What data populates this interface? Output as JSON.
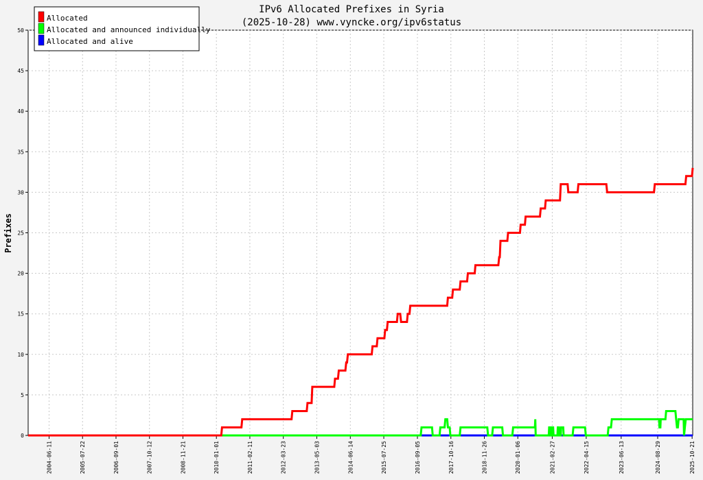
{
  "chart_data": {
    "type": "line",
    "title": "IPv6 Allocated Prefixes in Syria",
    "subtitle": "(2025-10-28) www.vyncke.org/ipv6status",
    "ylabel": "Prefixes",
    "xlabel": "",
    "ylim": [
      0,
      50
    ],
    "yticks": [
      0,
      5,
      10,
      15,
      20,
      25,
      30,
      35,
      40,
      45,
      50
    ],
    "xlim": [
      "2003-10-01",
      "2025-10-28"
    ],
    "xticks": [
      "2004-06-11",
      "2005-07-22",
      "2006-09-01",
      "2007-10-12",
      "2008-11-21",
      "2010-01-01",
      "2011-02-11",
      "2012-03-23",
      "2013-05-03",
      "2014-06-14",
      "2015-07-25",
      "2016-09-05",
      "2017-10-16",
      "2018-11-26",
      "2020-01-06",
      "2021-02-27",
      "2022-04-15",
      "2023-06-13",
      "2024-08-29",
      "2025-10-21"
    ],
    "grid": true,
    "legend_position": "top-left",
    "series": [
      {
        "name": "Allocated",
        "color": "#ff0000",
        "points": [
          [
            "2003-10-01",
            0
          ],
          [
            "2010-03-01",
            0
          ],
          [
            "2010-03-10",
            1
          ],
          [
            "2010-11-01",
            1
          ],
          [
            "2010-11-10",
            2
          ],
          [
            "2012-07-01",
            2
          ],
          [
            "2012-07-10",
            3
          ],
          [
            "2013-01-01",
            3
          ],
          [
            "2013-01-10",
            4
          ],
          [
            "2013-03-01",
            4
          ],
          [
            "2013-03-10",
            6
          ],
          [
            "2013-12-01",
            6
          ],
          [
            "2013-12-10",
            7
          ],
          [
            "2014-01-15",
            7
          ],
          [
            "2014-01-25",
            8
          ],
          [
            "2014-04-15",
            8
          ],
          [
            "2014-04-25",
            9
          ],
          [
            "2014-05-05",
            9
          ],
          [
            "2014-05-15",
            10
          ],
          [
            "2015-03-01",
            10
          ],
          [
            "2015-03-10",
            11
          ],
          [
            "2015-05-01",
            11
          ],
          [
            "2015-05-10",
            12
          ],
          [
            "2015-08-01",
            12
          ],
          [
            "2015-08-10",
            13
          ],
          [
            "2015-09-01",
            13
          ],
          [
            "2015-09-10",
            14
          ],
          [
            "2016-01-01",
            14
          ],
          [
            "2016-01-10",
            15
          ],
          [
            "2016-02-10",
            15
          ],
          [
            "2016-02-20",
            14
          ],
          [
            "2016-05-01",
            14
          ],
          [
            "2016-05-10",
            15
          ],
          [
            "2016-06-01",
            15
          ],
          [
            "2016-06-10",
            16
          ],
          [
            "2017-09-01",
            16
          ],
          [
            "2017-09-10",
            17
          ],
          [
            "2017-11-01",
            17
          ],
          [
            "2017-11-10",
            18
          ],
          [
            "2018-02-01",
            18
          ],
          [
            "2018-02-10",
            19
          ],
          [
            "2018-05-01",
            19
          ],
          [
            "2018-05-10",
            20
          ],
          [
            "2018-08-01",
            20
          ],
          [
            "2018-08-10",
            21
          ],
          [
            "2019-05-15",
            21
          ],
          [
            "2019-05-25",
            22
          ],
          [
            "2019-06-01",
            22
          ],
          [
            "2019-06-10",
            24
          ],
          [
            "2019-09-01",
            24
          ],
          [
            "2019-09-10",
            25
          ],
          [
            "2020-02-01",
            25
          ],
          [
            "2020-02-10",
            26
          ],
          [
            "2020-04-01",
            26
          ],
          [
            "2020-04-10",
            27
          ],
          [
            "2020-10-01",
            27
          ],
          [
            "2020-10-10",
            28
          ],
          [
            "2020-12-01",
            28
          ],
          [
            "2020-12-10",
            29
          ],
          [
            "2021-06-01",
            29
          ],
          [
            "2021-06-10",
            31
          ],
          [
            "2021-09-01",
            31
          ],
          [
            "2021-09-10",
            30
          ],
          [
            "2022-01-01",
            30
          ],
          [
            "2022-01-10",
            31
          ],
          [
            "2022-12-15",
            31
          ],
          [
            "2022-12-25",
            30
          ],
          [
            "2024-07-15",
            30
          ],
          [
            "2024-07-25",
            31
          ],
          [
            "2025-08-01",
            31
          ],
          [
            "2025-08-10",
            32
          ],
          [
            "2025-10-20",
            32
          ],
          [
            "2025-10-28",
            33
          ]
        ]
      },
      {
        "name": "Allocated and announced individually",
        "color": "#00ff00",
        "points": [
          [
            "2003-10-01",
            0
          ],
          [
            "2016-10-15",
            0
          ],
          [
            "2016-10-25",
            1
          ],
          [
            "2017-03-01",
            1
          ],
          [
            "2017-03-10",
            0
          ],
          [
            "2017-06-01",
            0
          ],
          [
            "2017-06-10",
            1
          ],
          [
            "2017-08-01",
            1
          ],
          [
            "2017-08-10",
            2
          ],
          [
            "2017-09-01",
            2
          ],
          [
            "2017-09-10",
            1
          ],
          [
            "2017-10-01",
            1
          ],
          [
            "2017-10-10",
            0
          ],
          [
            "2018-02-01",
            0
          ],
          [
            "2018-02-10",
            1
          ],
          [
            "2019-01-01",
            1
          ],
          [
            "2019-01-10",
            0
          ],
          [
            "2019-03-01",
            0
          ],
          [
            "2019-03-10",
            1
          ],
          [
            "2019-07-01",
            1
          ],
          [
            "2019-07-10",
            0
          ],
          [
            "2019-11-01",
            0
          ],
          [
            "2019-11-10",
            1
          ],
          [
            "2020-08-01",
            1
          ],
          [
            "2020-08-05",
            2
          ],
          [
            "2020-08-10",
            0
          ],
          [
            "2021-01-15",
            0
          ],
          [
            "2021-01-20",
            1
          ],
          [
            "2021-02-05",
            1
          ],
          [
            "2021-02-10",
            0
          ],
          [
            "2021-02-20",
            0
          ],
          [
            "2021-02-25",
            1
          ],
          [
            "2021-03-10",
            1
          ],
          [
            "2021-03-15",
            0
          ],
          [
            "2021-05-01",
            0
          ],
          [
            "2021-05-05",
            1
          ],
          [
            "2021-05-20",
            1
          ],
          [
            "2021-05-25",
            0
          ],
          [
            "2021-06-10",
            0
          ],
          [
            "2021-06-15",
            1
          ],
          [
            "2021-07-10",
            1
          ],
          [
            "2021-07-15",
            0
          ],
          [
            "2021-11-01",
            0
          ],
          [
            "2021-11-10",
            1
          ],
          [
            "2022-04-01",
            1
          ],
          [
            "2022-04-10",
            0
          ],
          [
            "2023-01-01",
            0
          ],
          [
            "2023-01-10",
            1
          ],
          [
            "2023-02-10",
            1
          ],
          [
            "2023-02-20",
            2
          ],
          [
            "2024-09-15",
            2
          ],
          [
            "2024-09-20",
            1
          ],
          [
            "2024-10-01",
            1
          ],
          [
            "2024-10-05",
            2
          ],
          [
            "2024-12-01",
            2
          ],
          [
            "2024-12-10",
            3
          ],
          [
            "2025-04-01",
            3
          ],
          [
            "2025-04-10",
            2
          ],
          [
            "2025-04-20",
            1
          ],
          [
            "2025-05-01",
            1
          ],
          [
            "2025-05-10",
            2
          ],
          [
            "2025-07-10",
            2
          ],
          [
            "2025-07-15",
            0
          ],
          [
            "2025-07-25",
            1
          ],
          [
            "2025-08-05",
            2
          ],
          [
            "2025-10-28",
            2
          ]
        ]
      },
      {
        "name": "Allocated and alive",
        "color": "#0000ff",
        "points": [
          [
            "2003-10-01",
            0
          ],
          [
            "2025-10-28",
            0
          ]
        ]
      }
    ]
  }
}
